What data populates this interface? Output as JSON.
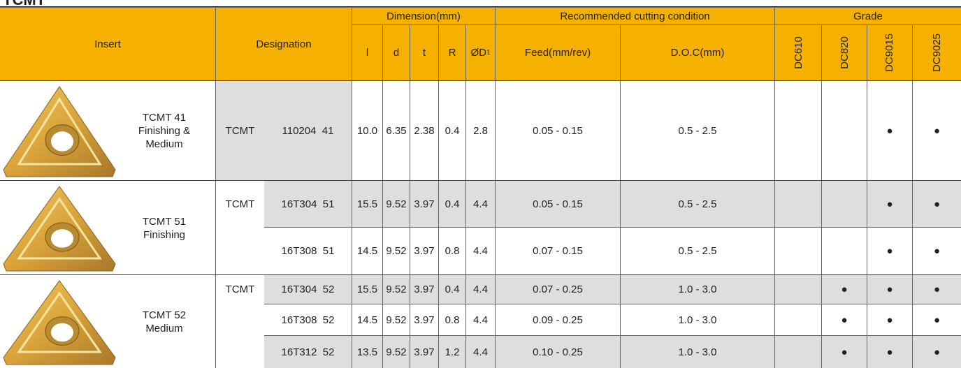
{
  "title": "TCMT",
  "header": {
    "insert": "Insert",
    "designation": "Designation",
    "dimension": "Dimension(mm)",
    "cutting": "Recommended cutting condition",
    "grade": "Grade",
    "dims": [
      "l",
      "d",
      "t",
      "R"
    ],
    "d1": {
      "main": "ØD",
      "sub": "1"
    },
    "feed": "Feed(mm/rev)",
    "doc": "D.O.C(mm)",
    "grades": [
      "DC610",
      "DC820",
      "DC9015",
      "DC9025"
    ]
  },
  "groups": [
    {
      "name": [
        "TCMT 41",
        "Finishing &",
        "Medium"
      ],
      "prefix": "TCMT",
      "rows": [
        {
          "code": "110204  41",
          "dims": [
            "10.0",
            "6.35",
            "2.38",
            "0.4",
            "2.8"
          ],
          "feed": "0.05 - 0.15",
          "doc": "0.5 - 2.5",
          "grades": [
            null,
            null,
            "●",
            "●"
          ]
        }
      ]
    },
    {
      "name": [
        "TCMT 51",
        "Finishing"
      ],
      "prefix": "TCMT",
      "rows": [
        {
          "code": "16T304  51",
          "dims": [
            "15.5",
            "9.52",
            "3.97",
            "0.4",
            "4.4"
          ],
          "feed": "0.05 - 0.15",
          "doc": "0.5 - 2.5",
          "grades": [
            null,
            null,
            "●",
            "●"
          ]
        },
        {
          "code": "16T308  51",
          "dims": [
            "14.5",
            "9.52",
            "3.97",
            "0.8",
            "4.4"
          ],
          "feed": "0.07 - 0.15",
          "doc": "0.5 - 2.5",
          "grades": [
            null,
            null,
            "●",
            "●"
          ]
        }
      ]
    },
    {
      "name": [
        "TCMT 52",
        "Medium"
      ],
      "prefix": "TCMT",
      "rows": [
        {
          "code": "16T304  52",
          "dims": [
            "15.5",
            "9.52",
            "3.97",
            "0.4",
            "4.4"
          ],
          "feed": "0.07 - 0.25",
          "doc": "1.0 - 3.0",
          "grades": [
            null,
            "●",
            "●",
            "●"
          ]
        },
        {
          "code": "16T308  52",
          "dims": [
            "14.5",
            "9.52",
            "3.97",
            "0.8",
            "4.4"
          ],
          "feed": "0.09 - 0.25",
          "doc": "1.0 - 3.0",
          "grades": [
            null,
            "●",
            "●",
            "●"
          ]
        },
        {
          "code": "16T312  52",
          "dims": [
            "13.5",
            "9.52",
            "3.97",
            "1.2",
            "4.4"
          ],
          "feed": "0.10 - 0.25",
          "doc": "1.0 - 3.0",
          "grades": [
            null,
            "●",
            "●",
            "●"
          ]
        }
      ]
    }
  ]
}
